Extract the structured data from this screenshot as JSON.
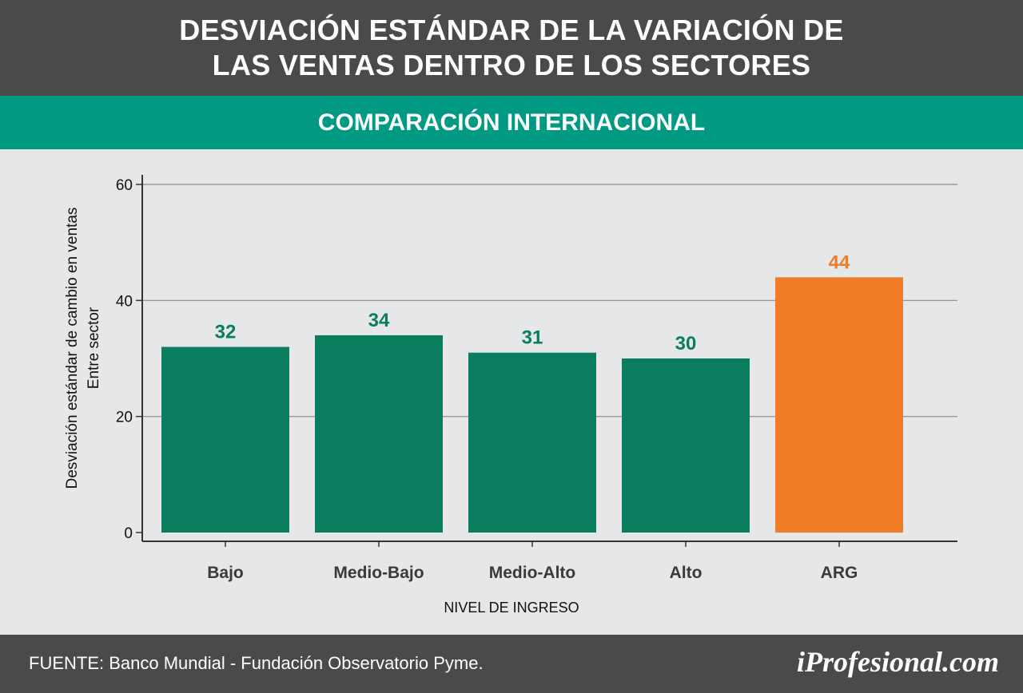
{
  "header": {
    "title_line1": "DESVIACIÓN ESTÁNDAR DE LA VARIACIÓN DE",
    "title_line2": "LAS VENTAS DENTRO DE LOS SECTORES",
    "subtitle": "COMPARACIÓN INTERNACIONAL"
  },
  "chart_data": {
    "type": "bar",
    "categories": [
      "Bajo",
      "Medio-Bajo",
      "Medio-Alto",
      "Alto",
      "ARG"
    ],
    "values": [
      32,
      34,
      31,
      30,
      44
    ],
    "data_labels": [
      "32",
      "34",
      "31",
      "30",
      "44"
    ],
    "colors": [
      "#0a7d5e",
      "#0a7d5e",
      "#0a7d5e",
      "#0a7d5e",
      "#f07c28"
    ],
    "label_colors": [
      "#0a7d5e",
      "#0a7d5e",
      "#0a7d5e",
      "#0a7d5e",
      "#f07c28"
    ],
    "ylabel_line1": "Desviación estándar de cambio en ventas",
    "ylabel_line2": "Entre sector",
    "xlabel": "NIVEL DE INGRESO",
    "ylim": [
      0,
      60
    ],
    "yticks": [
      0,
      20,
      40,
      60
    ],
    "grid": true
  },
  "footer": {
    "source": "FUENTE: Banco Mundial - Fundación Observatorio Pyme.",
    "brand": "iProfesional.com"
  }
}
